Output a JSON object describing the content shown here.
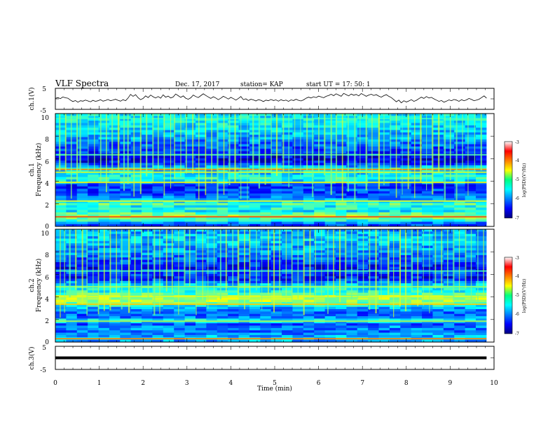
{
  "header": {
    "title": "VLF Spectra",
    "date": "Dec. 17, 2017",
    "station": "station= KAP",
    "start": "start  UT =  17: 50: 1"
  },
  "chart_data": [
    {
      "type": "line",
      "name": "ch1-waveform",
      "ylabel": "ch.1(V)",
      "ylim": [
        -5,
        5
      ],
      "yticks": [
        "5",
        "-5"
      ],
      "xlim": [
        0,
        10
      ],
      "x_extent": [
        0,
        9.83
      ],
      "values": [
        0.2,
        0.6,
        0.1,
        0.9,
        0.5,
        0.3,
        -0.6,
        -1.3,
        -0.8,
        -1.6,
        -0.9,
        -1.1,
        -0.6,
        -1.0,
        -1.4,
        -0.7,
        -1.2,
        -0.9,
        -0.4,
        -1.1,
        -0.8,
        -0.3,
        -0.9,
        -0.6,
        -0.2,
        -0.7,
        -1.1,
        -0.4,
        -0.9,
        0.4,
        2.1,
        1.2,
        2.0,
        0.5,
        -0.4,
        0.2,
        1.4,
        0.6,
        1.8,
        1.0,
        0.4,
        1.1,
        0.3,
        1.9,
        0.8,
        1.3,
        0.4,
        0.9,
        2.3,
        1.5,
        0.7,
        1.4,
        0.3,
        -0.2,
        0.5,
        1.8,
        1.1,
        0.6,
        1.5,
        2.4,
        1.6,
        0.9,
        0.2,
        1.0,
        0.4,
        -0.4,
        0.3,
        1.2,
        0.6,
        -0.1,
        0.7,
        0.1,
        -0.6,
        0.2,
        1.1,
        -0.4,
        0.0,
        -0.8,
        -0.2,
        -0.5,
        -1.0,
        -0.4,
        -0.7,
        -1.3,
        -0.6,
        -0.9,
        -0.3,
        -0.8,
        -0.5,
        -1.1,
        -0.4,
        -0.9,
        -0.6,
        -1.2,
        -0.5,
        -0.8,
        -0.2,
        -0.7,
        -1.0,
        -0.5,
        0.3,
        0.8,
        0.4,
        1.0,
        0.6,
        1.3,
        0.9,
        0.5,
        1.2,
        1.6,
        2.2,
        1.5,
        2.4,
        1.8,
        1.2,
        2.6,
        2.0,
        1.4,
        2.3,
        1.7,
        2.1,
        1.4,
        2.5,
        1.9,
        1.2,
        1.8,
        2.2,
        1.6,
        2.0,
        1.3,
        0.8,
        1.5,
        2.0,
        1.2,
        0.6,
        -0.4,
        -1.4,
        -0.6,
        -1.9,
        -0.9,
        -1.5,
        -1.0,
        -0.4,
        -1.2,
        -0.7,
        0.1,
        0.8,
        0.2,
        1.1,
        0.4,
        0.7,
        0.0,
        -0.6,
        -1.2,
        -0.8,
        -1.6,
        -1.1,
        -0.5,
        -0.9,
        -0.3,
        -0.6,
        -1.2,
        -0.4,
        -0.9,
        -0.5,
        0.2,
        -0.3,
        -0.9,
        -0.6,
        -0.2,
        0.6,
        1.4,
        0.3
      ]
    },
    {
      "type": "heatmap",
      "name": "ch1-spectrogram",
      "ylabel": "ch.1\nFrequency (kHz)",
      "ylim": [
        0,
        10
      ],
      "yticks": [
        "10",
        "8",
        "6",
        "4",
        "2",
        "0"
      ],
      "xlim": [
        0,
        10
      ],
      "x_extent": [
        0,
        9.83
      ],
      "colorbar": {
        "label": "log(PSD)(V²/Hz)",
        "range": [
          -7,
          -3
        ],
        "ticks": [
          "-3",
          "-4",
          "-5",
          "-6",
          "-7"
        ]
      },
      "freq_profile_khz": [
        [
          0,
          -6.4
        ],
        [
          0.3,
          -6.0
        ],
        [
          0.5,
          -5.4
        ],
        [
          0.8,
          -5.0
        ],
        [
          1.0,
          -4.9
        ],
        [
          1.2,
          -5.3
        ],
        [
          1.4,
          -5.6
        ],
        [
          1.6,
          -5.3
        ],
        [
          1.8,
          -5.5
        ],
        [
          2.0,
          -5.1
        ],
        [
          2.2,
          -5.6
        ],
        [
          2.4,
          -5.9
        ],
        [
          2.7,
          -6.1
        ],
        [
          3.0,
          -6.3
        ],
        [
          3.3,
          -6.2
        ],
        [
          3.6,
          -6.4
        ],
        [
          3.9,
          -5.9
        ],
        [
          4.2,
          -5.3
        ],
        [
          4.5,
          -5.5
        ],
        [
          4.8,
          -5.8
        ],
        [
          5.1,
          -5.3
        ],
        [
          5.4,
          -6.1
        ],
        [
          5.8,
          -6.6
        ],
        [
          6.2,
          -6.5
        ],
        [
          6.6,
          -6.3
        ],
        [
          7.0,
          -6.2
        ],
        [
          7.5,
          -6.0
        ],
        [
          8.0,
          -5.8
        ],
        [
          8.5,
          -5.7
        ],
        [
          9.0,
          -5.6
        ],
        [
          9.5,
          -5.5
        ],
        [
          10,
          -5.6
        ]
      ],
      "tones_khz": [
        [
          0.85,
          -3.8
        ],
        [
          2.25,
          -4.6
        ],
        [
          3.9,
          -4.5
        ],
        [
          4.8,
          -4.6
        ],
        [
          5.05,
          -4.0
        ],
        [
          6.35,
          -5.2
        ],
        [
          9.55,
          -5.3
        ]
      ],
      "burst_times_min": [
        0.08,
        0.22,
        0.35,
        0.48,
        0.55,
        0.74,
        0.88,
        1.02,
        1.15,
        1.28,
        1.42,
        1.55,
        1.64,
        1.78,
        1.93,
        2.06,
        2.21,
        2.33,
        2.47,
        2.62,
        2.71,
        2.85,
        2.97,
        3.12,
        3.26,
        3.41,
        3.55,
        3.68,
        3.83,
        3.95,
        4.08,
        4.22,
        4.37,
        4.49,
        4.63,
        4.77,
        4.91,
        5.03,
        5.18,
        5.31,
        5.45,
        5.58,
        5.72,
        5.85,
        5.99,
        6.12,
        6.27,
        6.39,
        6.53,
        6.66,
        6.81,
        6.94,
        7.07,
        7.21,
        7.36,
        7.48,
        7.63,
        7.76,
        7.9,
        8.03,
        8.18,
        8.31,
        8.45,
        8.58,
        8.72,
        8.86,
        8.99,
        9.13,
        9.27,
        9.4,
        9.55,
        9.69
      ]
    },
    {
      "type": "heatmap",
      "name": "ch2-spectrogram",
      "ylabel": "ch.2\nFrequency (kHz)",
      "ylim": [
        0,
        10
      ],
      "yticks": [
        "10",
        "8",
        "6",
        "4",
        "2",
        "0"
      ],
      "xlim": [
        0,
        10
      ],
      "x_extent": [
        0,
        9.83
      ],
      "colorbar": {
        "label": "log(PSD)(V²/Hz)",
        "range": [
          -7,
          -3
        ],
        "ticks": [
          "-3",
          "-4",
          "-5",
          "-6",
          "-7"
        ]
      },
      "freq_profile_khz": [
        [
          0,
          -6.0
        ],
        [
          0.3,
          -5.6
        ],
        [
          0.5,
          -5.8
        ],
        [
          0.8,
          -6.0
        ],
        [
          1.0,
          -6.1
        ],
        [
          1.3,
          -5.9
        ],
        [
          1.6,
          -6.2
        ],
        [
          1.9,
          -5.4
        ],
        [
          2.2,
          -6.0
        ],
        [
          2.5,
          -6.2
        ],
        [
          2.8,
          -6.0
        ],
        [
          3.1,
          -5.8
        ],
        [
          3.4,
          -5.1
        ],
        [
          3.7,
          -4.8
        ],
        [
          4.0,
          -4.9
        ],
        [
          4.3,
          -5.2
        ],
        [
          4.6,
          -5.6
        ],
        [
          4.9,
          -5.4
        ],
        [
          5.2,
          -5.9
        ],
        [
          5.5,
          -6.3
        ],
        [
          5.8,
          -6.5
        ],
        [
          6.1,
          -6.2
        ],
        [
          6.5,
          -6.5
        ],
        [
          7.0,
          -6.3
        ],
        [
          7.5,
          -6.1
        ],
        [
          8.0,
          -5.9
        ],
        [
          8.5,
          -5.9
        ],
        [
          9.0,
          -5.7
        ],
        [
          9.5,
          -5.8
        ],
        [
          10,
          -5.9
        ]
      ],
      "tones_khz": [
        [
          0.3,
          -4.0
        ],
        [
          1.85,
          -4.8
        ],
        [
          3.35,
          -4.3
        ],
        [
          4.05,
          -4.6
        ],
        [
          4.9,
          -4.9
        ],
        [
          6.3,
          -5.3
        ]
      ],
      "burst_times_min": [
        0.1,
        0.2,
        0.31,
        0.45,
        0.6,
        0.71,
        0.85,
        0.97,
        1.1,
        1.24,
        1.38,
        1.5,
        1.66,
        1.8,
        1.95,
        2.1,
        2.24,
        2.37,
        2.52,
        2.65,
        2.8,
        2.93,
        3.05,
        3.2,
        3.35,
        3.47,
        3.61,
        3.75,
        3.88,
        4.03,
        4.15,
        4.3,
        4.42,
        4.57,
        4.7,
        4.84,
        4.97,
        5.1,
        5.25,
        5.38,
        5.52,
        5.65,
        5.79,
        5.92,
        6.06,
        6.2,
        6.33,
        6.47,
        6.6,
        6.74,
        6.88,
        7.01,
        7.15,
        7.29,
        7.42,
        7.57,
        7.7,
        7.84,
        7.97,
        8.11,
        8.25,
        8.38,
        8.52,
        8.65,
        8.79,
        8.93,
        9.06,
        9.2,
        9.34,
        9.47,
        9.62,
        9.75
      ]
    },
    {
      "type": "line",
      "name": "ch3-waveform",
      "ylabel": "ch.3(V)",
      "ylim": [
        -5,
        5
      ],
      "yticks": [
        "5",
        "-5"
      ],
      "xlim": [
        0,
        10
      ],
      "x_extent": [
        0,
        9.83
      ],
      "level": 0,
      "xlabel": "Time (min)",
      "xticks": [
        "0",
        "1",
        "2",
        "3",
        "4",
        "5",
        "6",
        "7",
        "8",
        "9",
        "10"
      ]
    }
  ]
}
